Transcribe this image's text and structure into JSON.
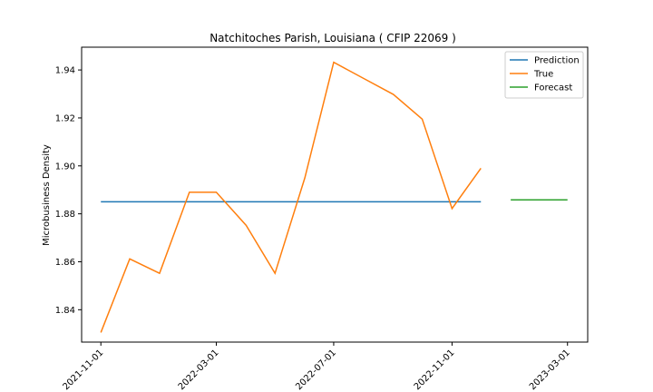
{
  "chart_data": {
    "type": "line",
    "title": "Natchitoches Parish, Louisiana ( CFIP 22069 )",
    "xlabel": "",
    "ylabel": "Microbusiness Density",
    "x_ticks": [
      "2021-11-01",
      "2022-03-01",
      "2022-07-01",
      "2022-11-01",
      "2023-03-01"
    ],
    "y_ticks": [
      "1.84",
      "1.86",
      "1.88",
      "1.90",
      "1.92",
      "1.94"
    ],
    "ylim": [
      1.8265,
      1.9495
    ],
    "xlim": [
      "2021-10-12",
      "2023-03-22"
    ],
    "legend_position": "top-right",
    "grid": false,
    "series": [
      {
        "name": "Prediction",
        "color": "#1f77b4",
        "x": [
          "2021-11-01",
          "2022-12-01"
        ],
        "y": [
          1.885,
          1.885
        ]
      },
      {
        "name": "True",
        "color": "#ff7f0e",
        "x": [
          "2021-11-01",
          "2021-12-01",
          "2022-01-01",
          "2022-02-01",
          "2022-03-01",
          "2022-04-01",
          "2022-05-01",
          "2022-06-01",
          "2022-07-01",
          "2022-08-01",
          "2022-09-01",
          "2022-10-01",
          "2022-11-01",
          "2022-12-01"
        ],
        "y": [
          1.8305,
          1.8612,
          1.8552,
          1.889,
          1.889,
          1.8752,
          1.8552,
          1.895,
          1.9432,
          1.9365,
          1.9298,
          1.9195,
          1.8822,
          1.899
        ]
      },
      {
        "name": "Forecast",
        "color": "#2ca02c",
        "x": [
          "2023-01-01",
          "2023-03-01"
        ],
        "y": [
          1.8858,
          1.8858
        ]
      }
    ]
  }
}
